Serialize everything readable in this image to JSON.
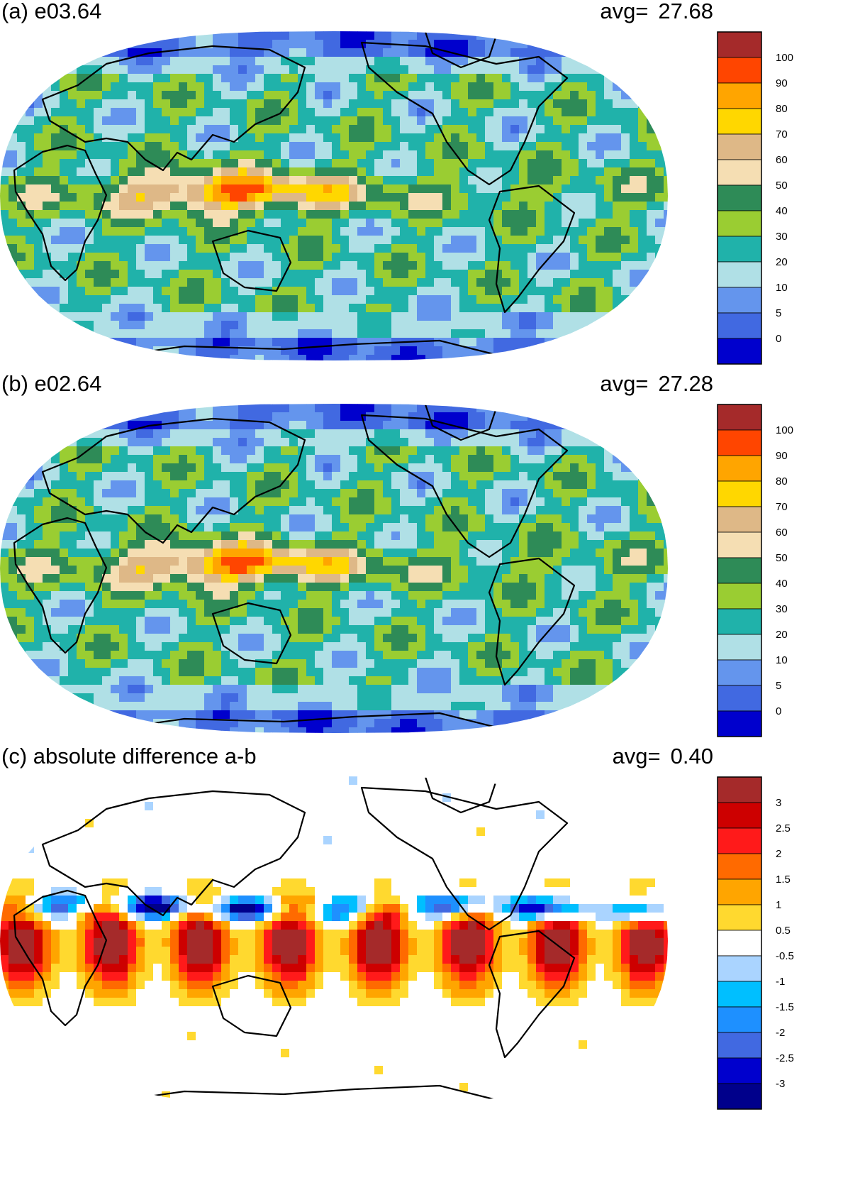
{
  "panels": [
    {
      "id": "a",
      "title": "(a) e03.64",
      "avg_label": "avg=",
      "avg_value": "27.68",
      "colorbar": {
        "labels": [
          "100",
          "90",
          "80",
          "70",
          "60",
          "50",
          "40",
          "30",
          "20",
          "10",
          "5",
          "0"
        ],
        "colors": [
          "#a52a2a",
          "#ff4500",
          "#ffa500",
          "#ffd700",
          "#deb887",
          "#f5deb3",
          "#2e8b57",
          "#9acd32",
          "#20b2aa",
          "#b0e0e6",
          "#6495ed",
          "#4169e1",
          "#0000cd"
        ]
      }
    },
    {
      "id": "b",
      "title": "(b) e02.64",
      "avg_label": "avg=",
      "avg_value": "27.28",
      "colorbar": {
        "labels": [
          "100",
          "90",
          "80",
          "70",
          "60",
          "50",
          "40",
          "30",
          "20",
          "10",
          "5",
          "0"
        ],
        "colors": [
          "#a52a2a",
          "#ff4500",
          "#ffa500",
          "#ffd700",
          "#deb887",
          "#f5deb3",
          "#2e8b57",
          "#9acd32",
          "#20b2aa",
          "#b0e0e6",
          "#6495ed",
          "#4169e1",
          "#0000cd"
        ]
      }
    },
    {
      "id": "c",
      "title": "(c) absolute difference a-b",
      "avg_label": "avg=",
      "avg_value": "0.40",
      "colorbar": {
        "labels": [
          "3",
          "2.5",
          "2",
          "1.5",
          "1",
          "0.5",
          "-0.5",
          "-1",
          "-1.5",
          "-2",
          "-2.5",
          "-3"
        ],
        "colors": [
          "#a52a2a",
          "#cd0000",
          "#ff1a1a",
          "#ff6a00",
          "#ffa500",
          "#ffd92f",
          "#ffffff",
          "#aad4ff",
          "#00bfff",
          "#1e90ff",
          "#4169e1",
          "#0000cd",
          "#00008b"
        ]
      }
    }
  ]
}
